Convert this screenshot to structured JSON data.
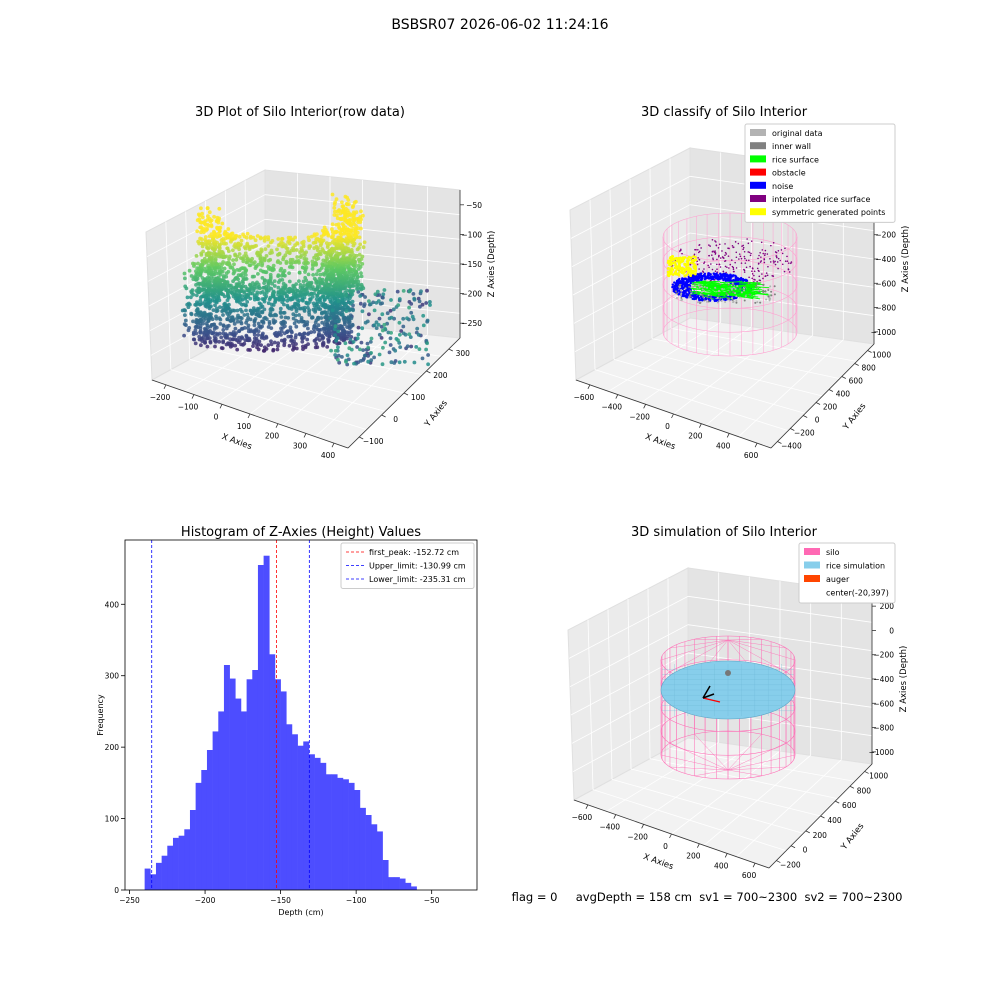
{
  "suptitle": "BSBSR07 2026-06-02 11:24:16",
  "chart_data": [
    {
      "type": "scatter",
      "projection": "3d",
      "title": "3D Plot of Silo Interior(row data)",
      "xlabel": "X Axies",
      "ylabel": "Y Axies",
      "zlabel": "Z Axies (Depth)",
      "x_ticks": [
        "−200",
        "−100",
        "0",
        "100",
        "200",
        "300",
        "400"
      ],
      "y_ticks": [
        "−100",
        "0",
        "100",
        "200",
        "300"
      ],
      "z_ticks": [
        "−50",
        "−100",
        "−150",
        "−200",
        "−250"
      ],
      "xlim": [
        -260,
        420
      ],
      "ylim": [
        -160,
        330
      ],
      "zlim": [
        -270,
        -40
      ],
      "colormap": "viridis"
    },
    {
      "type": "scatter",
      "projection": "3d",
      "title": "3D classify of Silo Interior",
      "xlabel": "X Axies",
      "ylabel": "Y Axies",
      "zlabel": "Z Axies (Depth)",
      "x_ticks": [
        "−600",
        "−400",
        "−200",
        "0",
        "200",
        "400",
        "600"
      ],
      "y_ticks": [
        "−400",
        "−200",
        "0",
        "200",
        "400",
        "600",
        "800",
        "1000"
      ],
      "z_ticks": [
        "200",
        "0",
        "−200",
        "−400",
        "−600",
        "−800",
        "−1000"
      ],
      "legend": {
        "position": "upper-right",
        "items": [
          {
            "label": "original data",
            "color": "#b3b3b3"
          },
          {
            "label": "inner wall",
            "color": "#808080"
          },
          {
            "label": "rice surface",
            "color": "#00ff00"
          },
          {
            "label": "obstacle",
            "color": "#ff0000"
          },
          {
            "label": "noise",
            "color": "#0000ff"
          },
          {
            "label": "interpolated rice surface",
            "color": "#800080"
          },
          {
            "label": "symmetric generated points",
            "color": "#ffff00"
          }
        ]
      }
    },
    {
      "type": "bar",
      "title": "Histogram of Z-Axies (Height) Values",
      "xlabel": "Depth (cm)",
      "ylabel": "Frequency",
      "color": "#4d4dff",
      "bins_start": -240,
      "bin_width": 3.75,
      "values": [
        30,
        22,
        38,
        48,
        62,
        73,
        76,
        85,
        112,
        150,
        168,
        196,
        222,
        250,
        315,
        296,
        268,
        250,
        295,
        308,
        455,
        468,
        330,
        295,
        278,
        232,
        218,
        202,
        208,
        190,
        185,
        178,
        162,
        162,
        157,
        155,
        150,
        140,
        115,
        105,
        92,
        82,
        42,
        18,
        18,
        16,
        10,
        5
      ],
      "x_ticks": [
        -250,
        -200,
        -150,
        -100,
        -50
      ],
      "y_ticks": [
        0,
        100,
        200,
        300,
        400
      ],
      "xlim": [
        -253,
        -20
      ],
      "ylim": [
        0,
        490
      ],
      "lines": [
        {
          "label": "first_peak: -152.72 cm",
          "x": -152.72,
          "color": "#ff0000"
        },
        {
          "label": "Upper_limit: -130.99 cm",
          "x": -130.99,
          "color": "#0000ff"
        },
        {
          "label": "Lower_limit: -235.31 cm",
          "x": -235.31,
          "color": "#0000ff"
        }
      ],
      "legend": {
        "position": "upper-right"
      }
    },
    {
      "type": "surface",
      "projection": "3d",
      "title": "3D simulation of Silo Interior",
      "xlabel": "X Axies",
      "ylabel": "Y Axies",
      "zlabel": "Z Axies (Depth)",
      "x_ticks": [
        "−600",
        "−400",
        "−200",
        "0",
        "200",
        "400",
        "600"
      ],
      "y_ticks": [
        "−200",
        "0",
        "200",
        "400",
        "600",
        "800",
        "1000"
      ],
      "z_ticks": [
        "200",
        "0",
        "−200",
        "−400",
        "−600",
        "−800",
        "−1000"
      ],
      "legend": {
        "position": "upper-right",
        "items": [
          {
            "label": "silo",
            "color": "#ff69b4"
          },
          {
            "label": "rice simulation",
            "color": "#87ceeb"
          },
          {
            "label": "auger",
            "color": "#ff4500"
          },
          {
            "label": "center(-20,397)",
            "color": ""
          }
        ]
      }
    }
  ],
  "status_line": "flag = 0     avgDepth = 158 cm  sv1 = 700~2300  sv2 = 700~2300"
}
